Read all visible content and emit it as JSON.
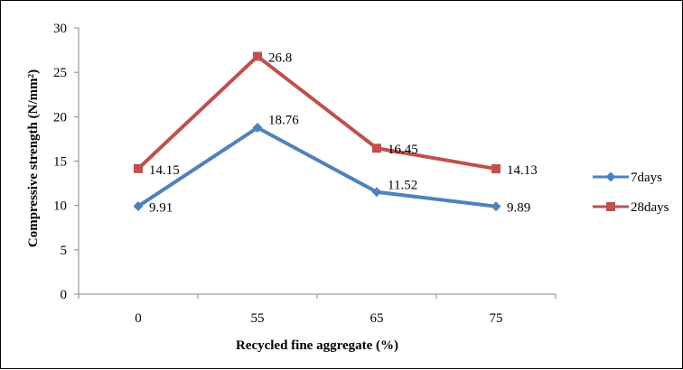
{
  "chart_data": {
    "type": "line",
    "categories": [
      "0",
      "55",
      "65",
      "75"
    ],
    "series": [
      {
        "name": "7days",
        "values": [
          9.91,
          18.76,
          11.52,
          9.89
        ],
        "labels": [
          "9.91",
          "18.76",
          "11.52",
          "9.89"
        ],
        "color": "#4F81BD",
        "marker": "diamond"
      },
      {
        "name": "28days",
        "values": [
          14.15,
          26.8,
          16.45,
          14.13
        ],
        "labels": [
          "14.15",
          "26.8",
          "16.45",
          "14.13"
        ],
        "color": "#C0504D",
        "marker": "square"
      }
    ],
    "xlabel": "Recycled fine aggregate (%)",
    "ylabel": "Compressive strength (N/mm²)",
    "ylim": [
      0,
      30
    ],
    "yticks": [
      "0",
      "5",
      "10",
      "15",
      "20",
      "25",
      "30"
    ],
    "grid": false,
    "legend_position": "right"
  }
}
